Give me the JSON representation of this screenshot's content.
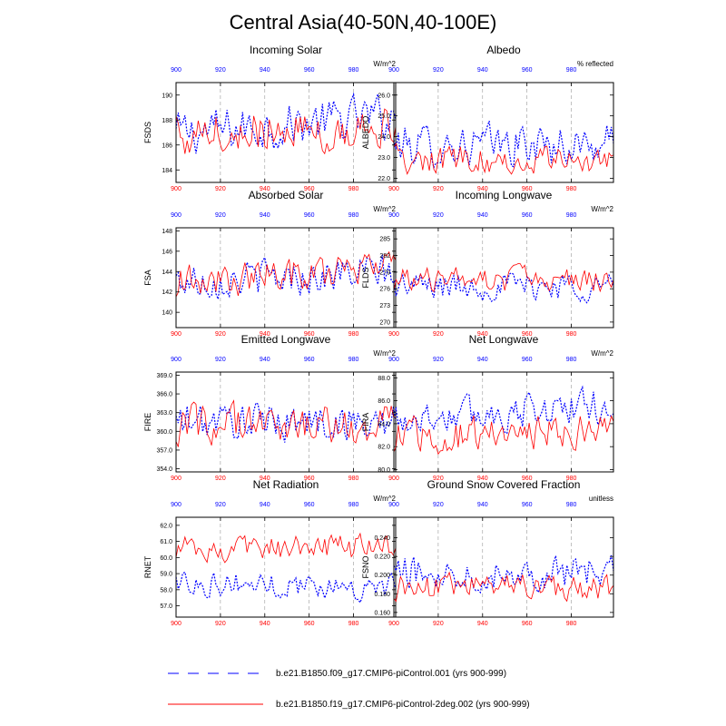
{
  "figure": {
    "title": "Central Asia(40-50N,40-100E)",
    "colors": {
      "series1": "#0000ff",
      "series2": "#ff0000",
      "grid": "#999999",
      "axis": "#000000"
    }
  },
  "legend": [
    {
      "label": "b.e21.B1850.f09_g17.CMIP6-piControl.001 (yrs 900-999)",
      "color": "#0000ff",
      "style": "dashed"
    },
    {
      "label": "b.e21.B1850.f19_g17.CMIP6-piControl-2deg.002 (yrs 900-999)",
      "color": "#ff0000",
      "style": "solid"
    }
  ],
  "chart_data": [
    {
      "type": "line",
      "title": "Incoming Solar",
      "ylabel": "FSDS",
      "units": "W/m^2",
      "xlim": [
        900,
        999
      ],
      "ylim": [
        183,
        191
      ],
      "yticks": [
        184,
        186,
        188,
        190
      ],
      "ytick_labels": [
        "184",
        "186",
        "188",
        "190"
      ],
      "xticks": [
        900,
        920,
        940,
        960,
        980
      ],
      "series": [
        {
          "name": "f09_g17.001",
          "mean": 187.6,
          "amp": 1.6,
          "trend": 0.7
        },
        {
          "name": "f19_g17-2deg.002",
          "mean": 187.2,
          "amp": 1.5,
          "trend": 0.3
        }
      ]
    },
    {
      "type": "line",
      "title": "Albedo",
      "ylabel": "ALBEDO",
      "units": "% reflected",
      "xlim": [
        900,
        999
      ],
      "ylim": [
        21.8,
        26.6
      ],
      "yticks": [
        22,
        23,
        24,
        25,
        26
      ],
      "ytick_labels": [
        "22.0",
        "23.0",
        "24.0",
        "25.0",
        "26.0"
      ],
      "xticks": [
        900,
        920,
        940,
        960,
        980
      ],
      "series": [
        {
          "name": "f09_g17.001",
          "mean": 23.6,
          "amp": 0.9,
          "trend": 0.0
        },
        {
          "name": "f19_g17-2deg.002",
          "mean": 22.9,
          "amp": 0.6,
          "trend": 0.0
        }
      ]
    },
    {
      "type": "line",
      "title": "Absorbed Solar",
      "ylabel": "FSA",
      "units": "W/m^2",
      "xlim": [
        900,
        999
      ],
      "ylim": [
        138.5,
        148.3
      ],
      "yticks": [
        140,
        142,
        144,
        146,
        148
      ],
      "ytick_labels": [
        "140",
        "142",
        "144",
        "146",
        "148"
      ],
      "xticks": [
        900,
        920,
        940,
        960,
        980
      ],
      "series": [
        {
          "name": "f09_g17.001",
          "mean": 143.5,
          "amp": 1.6,
          "trend": 0.4
        },
        {
          "name": "f19_g17-2deg.002",
          "mean": 143.6,
          "amp": 1.5,
          "trend": 0.6
        }
      ]
    },
    {
      "type": "line",
      "title": "Incoming Longwave",
      "ylabel": "FLDS",
      "units": "W/m^2",
      "xlim": [
        900,
        999
      ],
      "ylim": [
        269,
        287
      ],
      "yticks": [
        270,
        273,
        276,
        279,
        282,
        285
      ],
      "ytick_labels": [
        "270",
        "273",
        "276",
        "279",
        "282",
        "285"
      ],
      "xticks": [
        900,
        920,
        940,
        960,
        980
      ],
      "series": [
        {
          "name": "f09_g17.001",
          "mean": 276.5,
          "amp": 2.3,
          "trend": 0.0
        },
        {
          "name": "f19_g17-2deg.002",
          "mean": 277.6,
          "amp": 2.0,
          "trend": 0.0
        }
      ]
    },
    {
      "type": "line",
      "title": "Emitted Longwave",
      "ylabel": "FIRE",
      "units": "W/m^2",
      "xlim": [
        900,
        999
      ],
      "ylim": [
        353.5,
        369.5
      ],
      "yticks": [
        354,
        357,
        360,
        363,
        366,
        369
      ],
      "ytick_labels": [
        "354.0",
        "357.0",
        "360.0",
        "363.0",
        "366.0",
        "369.0"
      ],
      "xticks": [
        900,
        920,
        940,
        960,
        980
      ],
      "series": [
        {
          "name": "f09_g17.001",
          "mean": 361.5,
          "amp": 2.7,
          "trend": 0.0
        },
        {
          "name": "f19_g17-2deg.002",
          "mean": 361.0,
          "amp": 2.8,
          "trend": 0.0
        }
      ]
    },
    {
      "type": "line",
      "title": "Net Longwave",
      "ylabel": "FIRA",
      "units": "W/m^2",
      "xlim": [
        900,
        999
      ],
      "ylim": [
        79.8,
        88.5
      ],
      "yticks": [
        80,
        82,
        84,
        86,
        88
      ],
      "ytick_labels": [
        "80.0",
        "82.0",
        "84.0",
        "86.0",
        "88.0"
      ],
      "xticks": [
        900,
        920,
        940,
        960,
        980
      ],
      "series": [
        {
          "name": "f09_g17.001",
          "mean": 85.0,
          "amp": 1.4,
          "trend": 0.6
        },
        {
          "name": "f19_g17-2deg.002",
          "mean": 83.1,
          "amp": 1.4,
          "trend": 0.3
        }
      ]
    },
    {
      "type": "line",
      "title": "Net Radiation",
      "ylabel": "RNET",
      "units": "W/m^2",
      "xlim": [
        900,
        999
      ],
      "ylim": [
        56.3,
        62.5
      ],
      "yticks": [
        57,
        58,
        59,
        60,
        61,
        62
      ],
      "ytick_labels": [
        "57.0",
        "58.0",
        "59.0",
        "60.0",
        "61.0",
        "62.0"
      ],
      "xticks": [
        900,
        920,
        940,
        960,
        980
      ],
      "series": [
        {
          "name": "f09_g17.001",
          "mean": 58.3,
          "amp": 0.7,
          "trend": -0.2
        },
        {
          "name": "f19_g17-2deg.002",
          "mean": 60.6,
          "amp": 0.7,
          "trend": 0.0
        }
      ]
    },
    {
      "type": "line",
      "title": "Ground Snow Covered Fraction",
      "ylabel": "FSNO",
      "units": "unitless",
      "xlim": [
        900,
        999
      ],
      "ylim": [
        0.155,
        0.262
      ],
      "yticks": [
        0.16,
        0.18,
        0.2,
        0.22,
        0.24
      ],
      "ytick_labels": [
        "0.160",
        "0.180",
        "0.200",
        "0.220",
        "0.240"
      ],
      "xticks": [
        900,
        920,
        940,
        960,
        980
      ],
      "series": [
        {
          "name": "f09_g17.001",
          "mean": 0.203,
          "amp": 0.016,
          "trend": 0.0
        },
        {
          "name": "f19_g17-2deg.002",
          "mean": 0.186,
          "amp": 0.013,
          "trend": 0.0
        }
      ]
    }
  ]
}
